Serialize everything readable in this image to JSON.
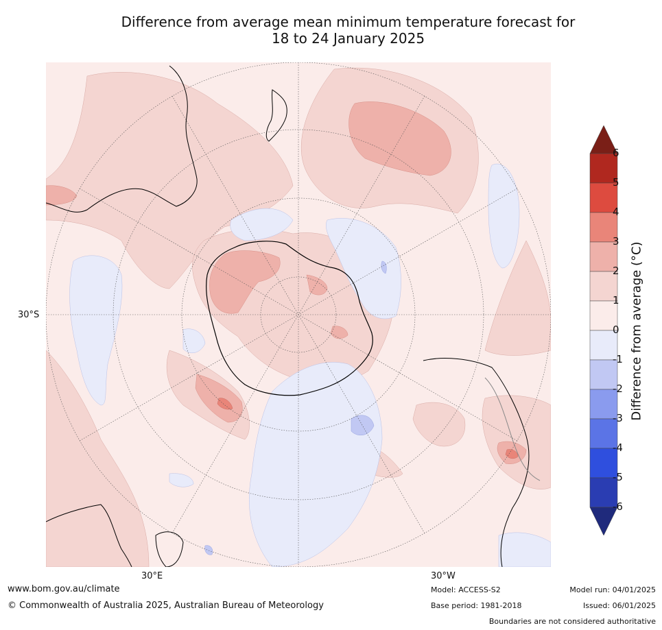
{
  "title": {
    "line1": "Difference from average mean minimum temperature forecast for",
    "line2": "18 to 24 January 2025"
  },
  "map": {
    "projection": "south-polar-stereographic",
    "lat_labels": [
      "30°S"
    ],
    "lon_labels": [
      "30°E",
      "30°W"
    ]
  },
  "colorbar": {
    "label": "Difference from average (°C)",
    "ticks": [
      "6",
      "5",
      "4",
      "3",
      "2",
      "1",
      "0",
      "-1",
      "-2",
      "-3",
      "-4",
      "-5",
      "-6"
    ],
    "colors": {
      "above_6": "#7a1f17",
      "5_to_6": "#b0281f",
      "4_to_5": "#dd4b3f",
      "3_to_4": "#e98579",
      "2_to_3": "#eeb1aa",
      "1_to_2": "#f4d5d1",
      "0_to_1": "#fbecea",
      "-1_to_0": "#e8ebfa",
      "-2_to_-1": "#c1c8f3",
      "-3_to_-2": "#8a9bee",
      "-4_to_-3": "#5b74e6",
      "-5_to_-4": "#2f4fde",
      "-6_to_-5": "#2a3db2",
      "below_-6": "#1f2a7c"
    }
  },
  "footer": {
    "website": "www.bom.gov.au/climate",
    "copyright": "© Commonwealth of Australia 2025, Australian Bureau of Meteorology",
    "model": "Model: ACCESS-S2",
    "base_period": "Base period: 1981-2018",
    "model_run": "Model run: 04/01/2025",
    "issued": "Issued: 06/01/2025",
    "disclaimer": "Boundaries are not considered authoritative"
  }
}
